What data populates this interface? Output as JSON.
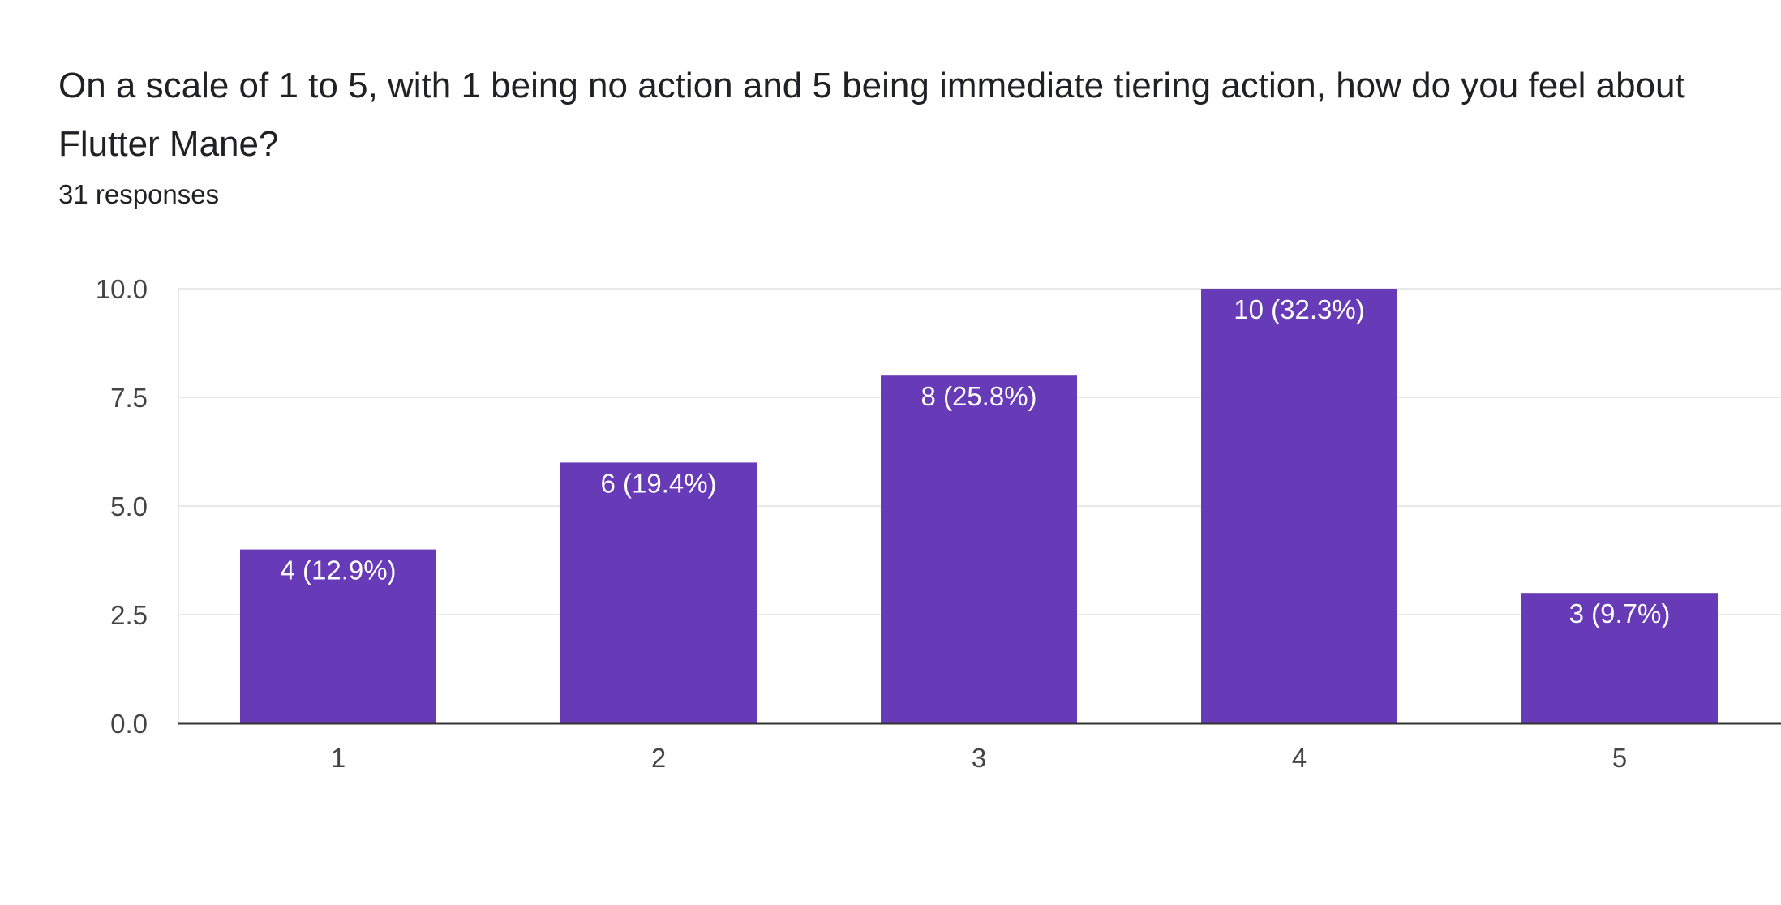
{
  "question": {
    "title": "On a scale of 1 to 5, with 1 being no action and 5 being immediate tiering action, how do you feel about Flutter Mane?",
    "responses": "31 responses"
  },
  "colors": {
    "bar": "#673ab7",
    "bar_label": "#ffffff",
    "grid": "#e8e8e8",
    "axis": "#333333",
    "tick_text": "#444444"
  },
  "chart_data": {
    "type": "bar",
    "title": "",
    "xlabel": "",
    "ylabel": "",
    "categories": [
      "1",
      "2",
      "3",
      "4",
      "5"
    ],
    "values": [
      4,
      6,
      8,
      10,
      3
    ],
    "data_labels": [
      "4 (12.9%)",
      "6 (19.4%)",
      "8 (25.8%)",
      "10 (32.3%)",
      "3 (9.7%)"
    ],
    "ylim": [
      0,
      10
    ],
    "yticks": [
      "0.0",
      "2.5",
      "5.0",
      "7.5",
      "10.0"
    ],
    "grid": true,
    "legend": "none"
  }
}
